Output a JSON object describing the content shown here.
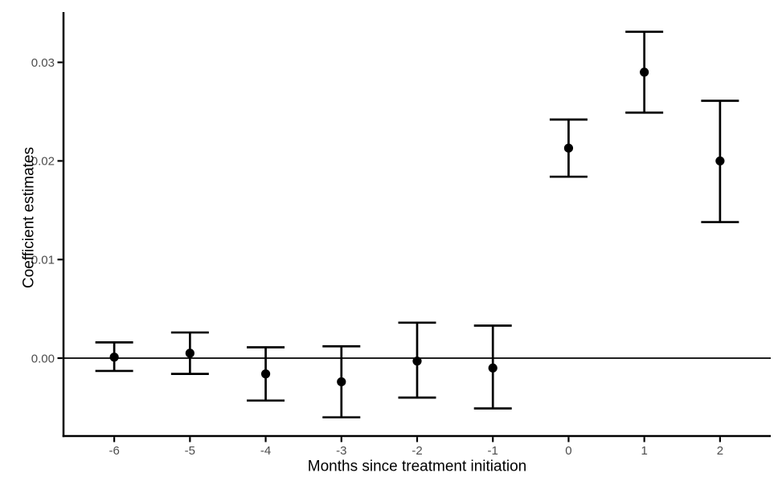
{
  "chart_data": {
    "type": "scatter",
    "subtype": "point-estimates-with-error-bars",
    "title": "",
    "xlabel": "Months since treatment initiation",
    "ylabel": "Coefficient estimates",
    "x": [
      -6,
      -5,
      -4,
      -3,
      -2,
      -1,
      0,
      1,
      2
    ],
    "x_tick_labels": [
      "-6",
      "-5",
      "-4",
      "-3",
      "-2",
      "-1",
      "0",
      "1",
      "2"
    ],
    "y_ticks": [
      0,
      0.01,
      0.02,
      0.03
    ],
    "y_tick_labels": [
      "0.00",
      "0.01",
      "0.02",
      "0.03"
    ],
    "estimates": [
      0.0001,
      0.0005,
      -0.0016,
      -0.0024,
      -0.0003,
      -0.001,
      0.0213,
      0.029,
      0.02
    ],
    "ci_low": [
      -0.0013,
      -0.0016,
      -0.0043,
      -0.006,
      -0.004,
      -0.0051,
      0.0184,
      0.0249,
      0.0138
    ],
    "ci_high": [
      0.0016,
      0.0026,
      0.0011,
      0.0012,
      0.0036,
      0.0033,
      0.0242,
      0.0331,
      0.0261
    ],
    "reference_line_y": 0,
    "xlim": [
      -6.67,
      2.67
    ],
    "ylim": [
      -0.0079,
      0.0351
    ],
    "grid": false,
    "legend": false,
    "point_color": "#000000",
    "line_color": "#000000",
    "axis_color": "#000000",
    "tick_label_color": "#4d4d4d",
    "background": "#ffffff"
  }
}
